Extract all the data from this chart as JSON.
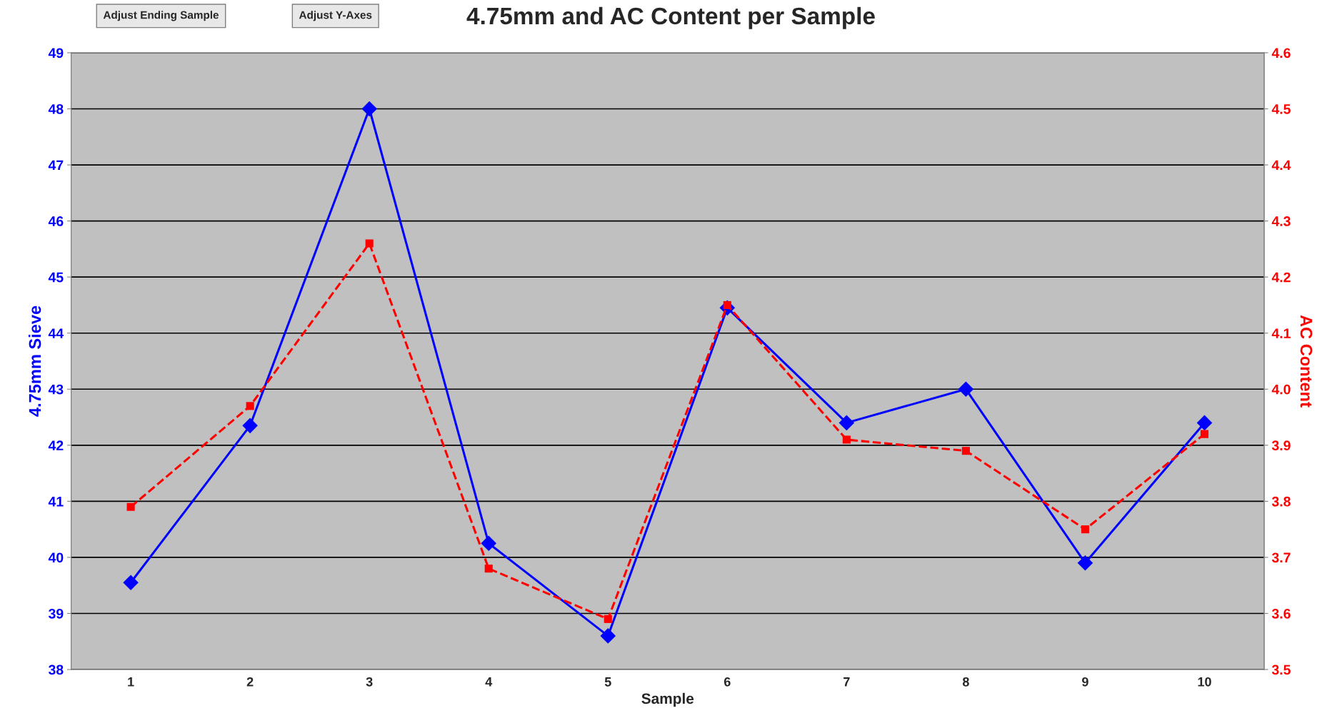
{
  "chart_data": {
    "type": "line",
    "title": "4.75mm and AC Content per Sample",
    "xlabel": "Sample",
    "ylabel": "4.75mm Sieve",
    "y2label": "AC Content",
    "annotations": [
      "Adjust Ending Sample",
      "Adjust Y-Axes"
    ],
    "categories": [
      "1",
      "2",
      "3",
      "4",
      "5",
      "6",
      "7",
      "8",
      "9",
      "10"
    ],
    "series": [
      {
        "color": "#0000ff",
        "marker": "diamond",
        "line_style": "solid",
        "values": [
          39.55,
          42.35,
          48.0,
          40.25,
          38.6,
          44.45,
          42.4,
          43.0,
          39.9,
          42.4
        ]
      },
      {
        "color": "#ff0000",
        "marker": "square",
        "line_style": "dashed",
        "axis": "y2",
        "values": [
          3.79,
          3.97,
          4.26,
          3.68,
          3.59,
          4.15,
          3.91,
          3.89,
          3.75,
          3.92
        ]
      }
    ],
    "ylim": [
      38,
      49
    ],
    "yticks": [
      38,
      39,
      40,
      41,
      42,
      43,
      44,
      45,
      46,
      47,
      48,
      49
    ],
    "y2lim": [
      3.5,
      4.6
    ],
    "y2ticks": [
      3.5,
      3.6,
      3.7,
      3.8,
      3.9,
      {
        "value": 4,
        "label": "4.0"
      },
      4.1,
      4.2,
      4.3,
      4.4,
      4.5,
      4.6
    ],
    "grid": "y",
    "legend": false
  }
}
